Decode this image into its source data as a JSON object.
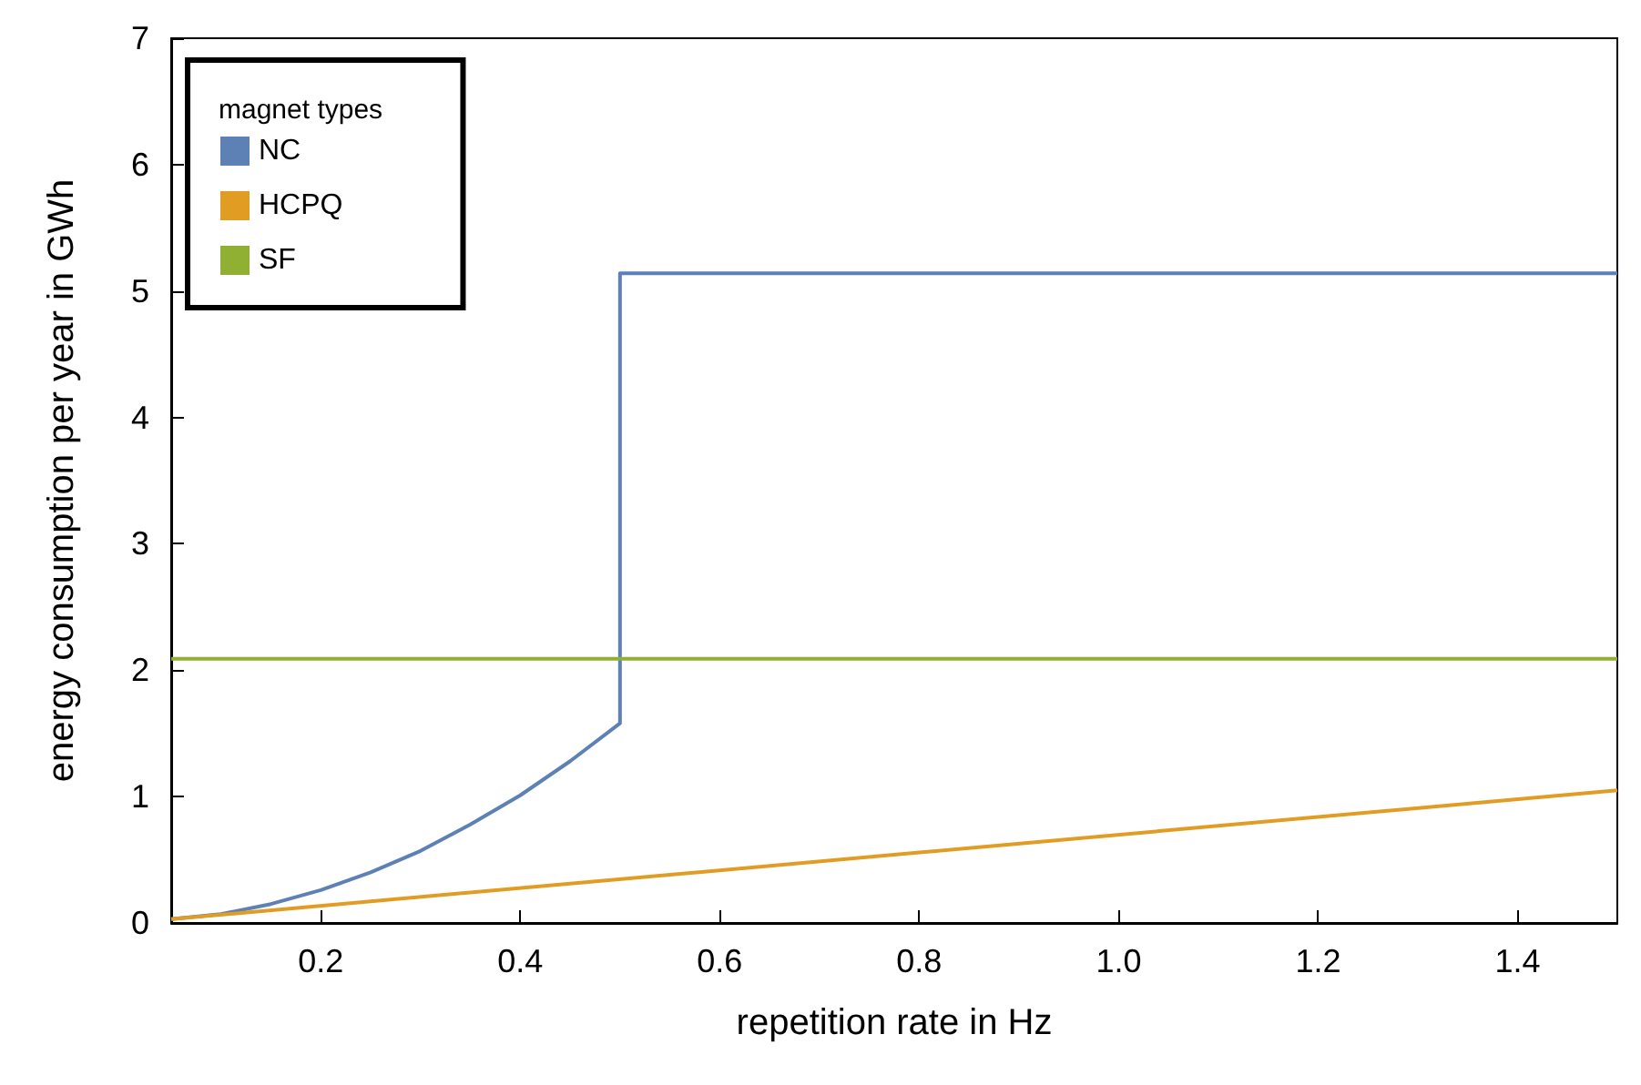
{
  "chart_data": {
    "type": "line",
    "xlabel": "repetition rate in Hz",
    "ylabel": "energy consumption per year in GWh",
    "legend_title": "magnet types",
    "legend": "top left",
    "grid": false,
    "marker": "none",
    "line_style": "solid",
    "xlim": [
      0.05,
      1.5
    ],
    "xticks": [
      0.2,
      0.4,
      0.6,
      0.8,
      {
        "value": 1,
        "label": "1.0"
      },
      1.2,
      1.4
    ],
    "ylim": [
      0,
      7
    ],
    "yticks": [
      0,
      1,
      2,
      3,
      4,
      5,
      6,
      7
    ],
    "series": [
      {
        "name": "NC",
        "color": "#5e81b5",
        "x": [
          0.05,
          0.1,
          0.15,
          0.2,
          0.25,
          0.3,
          0.35,
          0.4,
          0.45,
          0.5,
          0.5,
          1.5
        ],
        "values": [
          0.03,
          0.07,
          0.15,
          0.26,
          0.4,
          0.57,
          0.78,
          1.01,
          1.28,
          1.58,
          5.14,
          5.14
        ]
      },
      {
        "name": "HCPQ",
        "color": "#e19c24",
        "x": [
          0.05,
          1.5
        ],
        "values": [
          0.03,
          1.05
        ]
      },
      {
        "name": "SF",
        "color": "#8fb032",
        "x": [
          0.05,
          1.5
        ],
        "values": [
          2.09,
          2.09
        ]
      }
    ]
  }
}
